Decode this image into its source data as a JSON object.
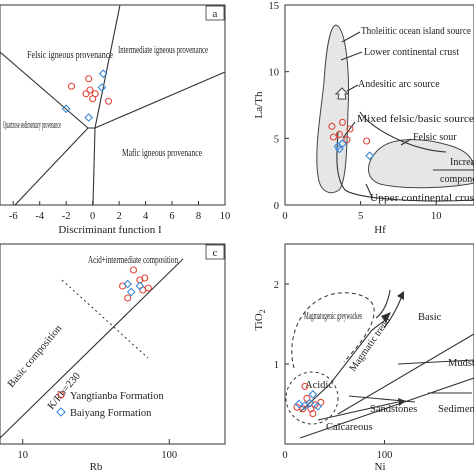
{
  "legend": {
    "yangtianba": "Yangtianba Formation",
    "baiyang": "Baiyang Formation",
    "colors": {
      "yangtianba": "#e0463b",
      "baiyang": "#3c8ad8"
    }
  },
  "panels": {
    "a": {
      "letter": "a",
      "xlabel": "Discriminant function I",
      "ticks": [
        "-6",
        "-4",
        "-2",
        "0",
        "2",
        "4",
        "6",
        "8",
        "10"
      ],
      "fields": {
        "felsic": "Felsic igneous provenance",
        "intermediate": "Intermediate igneous provenance",
        "quartzose": "Quartzose sedimentary provenance",
        "mafic": "Mafic igneous provenance"
      }
    },
    "b": {
      "xlabel": "Hf",
      "ylabel": "La/Th",
      "xticks": [
        "0",
        "5",
        "10"
      ],
      "yticks": [
        "0",
        "5",
        "10",
        "15"
      ],
      "fields": {
        "ocean": "Tholeiitic ocean island source",
        "lower": "Lower continental crust",
        "andesitic": "Andesitic arc source",
        "mixed": "Mixed felsic/basic source",
        "felsic": "Felsic sour",
        "increase": "Increa",
        "compone": "compone",
        "upper": "Upper continental crus"
      }
    },
    "c": {
      "letter": "c",
      "xlabel": "Rb",
      "xticks": [
        "10",
        "100"
      ],
      "fields": {
        "acid": "Acid+intermediate composition",
        "basic": "Basic composition",
        "ratio": "K/Rb=230"
      }
    },
    "d": {
      "xlabel": "Ni",
      "ylabel": "TiO2",
      "xticks": [
        "0",
        "100"
      ],
      "yticks": [
        "1",
        "2"
      ],
      "fields": {
        "magmatogenic": "Magmatogenic greywackes",
        "basic": "Basic",
        "trend": "Magmatic trend",
        "acidic": "Acidic",
        "mudst": "Mudst",
        "sandstones": "Sandstones",
        "calcareous": "Calcareous",
        "sediment": "Sedimen trend"
      }
    }
  },
  "chart_data": [
    {
      "panel": "a",
      "type": "scatter",
      "xlabel": "Discriminant function I",
      "xlim": [
        -7,
        10
      ],
      "ylim": [
        -8,
        8
      ],
      "series": [
        {
          "name": "Yangtianba Formation",
          "x": [
            -1.6,
            -0.3,
            0.0,
            0.2,
            -0.5,
            -0.2,
            1.2
          ],
          "y": [
            1.5,
            2.1,
            0.5,
            0.9,
            0.9,
            1.2,
            0.3
          ]
        },
        {
          "name": "Baiyang Formation",
          "x": [
            0.8,
            -2.0,
            -0.3,
            0.7
          ],
          "y": [
            2.5,
            -0.3,
            -1.0,
            1.4
          ]
        }
      ]
    },
    {
      "panel": "b",
      "type": "scatter",
      "xlabel": "Hf",
      "ylabel": "La/Th",
      "xlim": [
        0,
        12.5
      ],
      "ylim": [
        0,
        15
      ],
      "series": [
        {
          "name": "Yangtianba Formation",
          "x": [
            3.1,
            3.8,
            4.3,
            3.6,
            3.2,
            4.1,
            5.4
          ],
          "y": [
            5.9,
            6.2,
            5.7,
            5.3,
            5.1,
            4.9,
            4.8
          ]
        },
        {
          "name": "Baiyang Formation",
          "x": [
            3.5,
            3.8,
            3.6,
            5.6
          ],
          "y": [
            4.4,
            4.6,
            4.2,
            3.7
          ]
        }
      ]
    },
    {
      "panel": "c",
      "type": "scatter",
      "xlabel": "Rb",
      "xscale": "log",
      "xlim": [
        7,
        240
      ],
      "series": [
        {
          "name": "Yangtianba Formation",
          "x": [
            57,
            63,
            48,
            52,
            66,
            72,
            68
          ],
          "y": [
            0.87,
            0.82,
            0.79,
            0.73,
            0.77,
            0.78,
            0.83
          ]
        },
        {
          "name": "Baiyang Formation",
          "x": [
            52,
            55,
            63
          ],
          "y": [
            0.8,
            0.76,
            0.79
          ]
        }
      ]
    },
    {
      "panel": "d",
      "type": "scatter",
      "xlabel": "Ni",
      "ylabel": "TiO2",
      "xlim": [
        0,
        190
      ],
      "ylim": [
        0,
        2.5
      ],
      "series": [
        {
          "name": "Yangtianba Formation",
          "x": [
            12,
            18,
            22,
            26,
            30,
            36,
            20,
            28
          ],
          "y": [
            0.46,
            0.44,
            0.57,
            0.44,
            0.49,
            0.52,
            0.72,
            0.38
          ]
        },
        {
          "name": "Baiyang Formation",
          "x": [
            14,
            20,
            25,
            28,
            33
          ],
          "y": [
            0.5,
            0.48,
            0.51,
            0.62,
            0.47
          ]
        }
      ]
    }
  ]
}
